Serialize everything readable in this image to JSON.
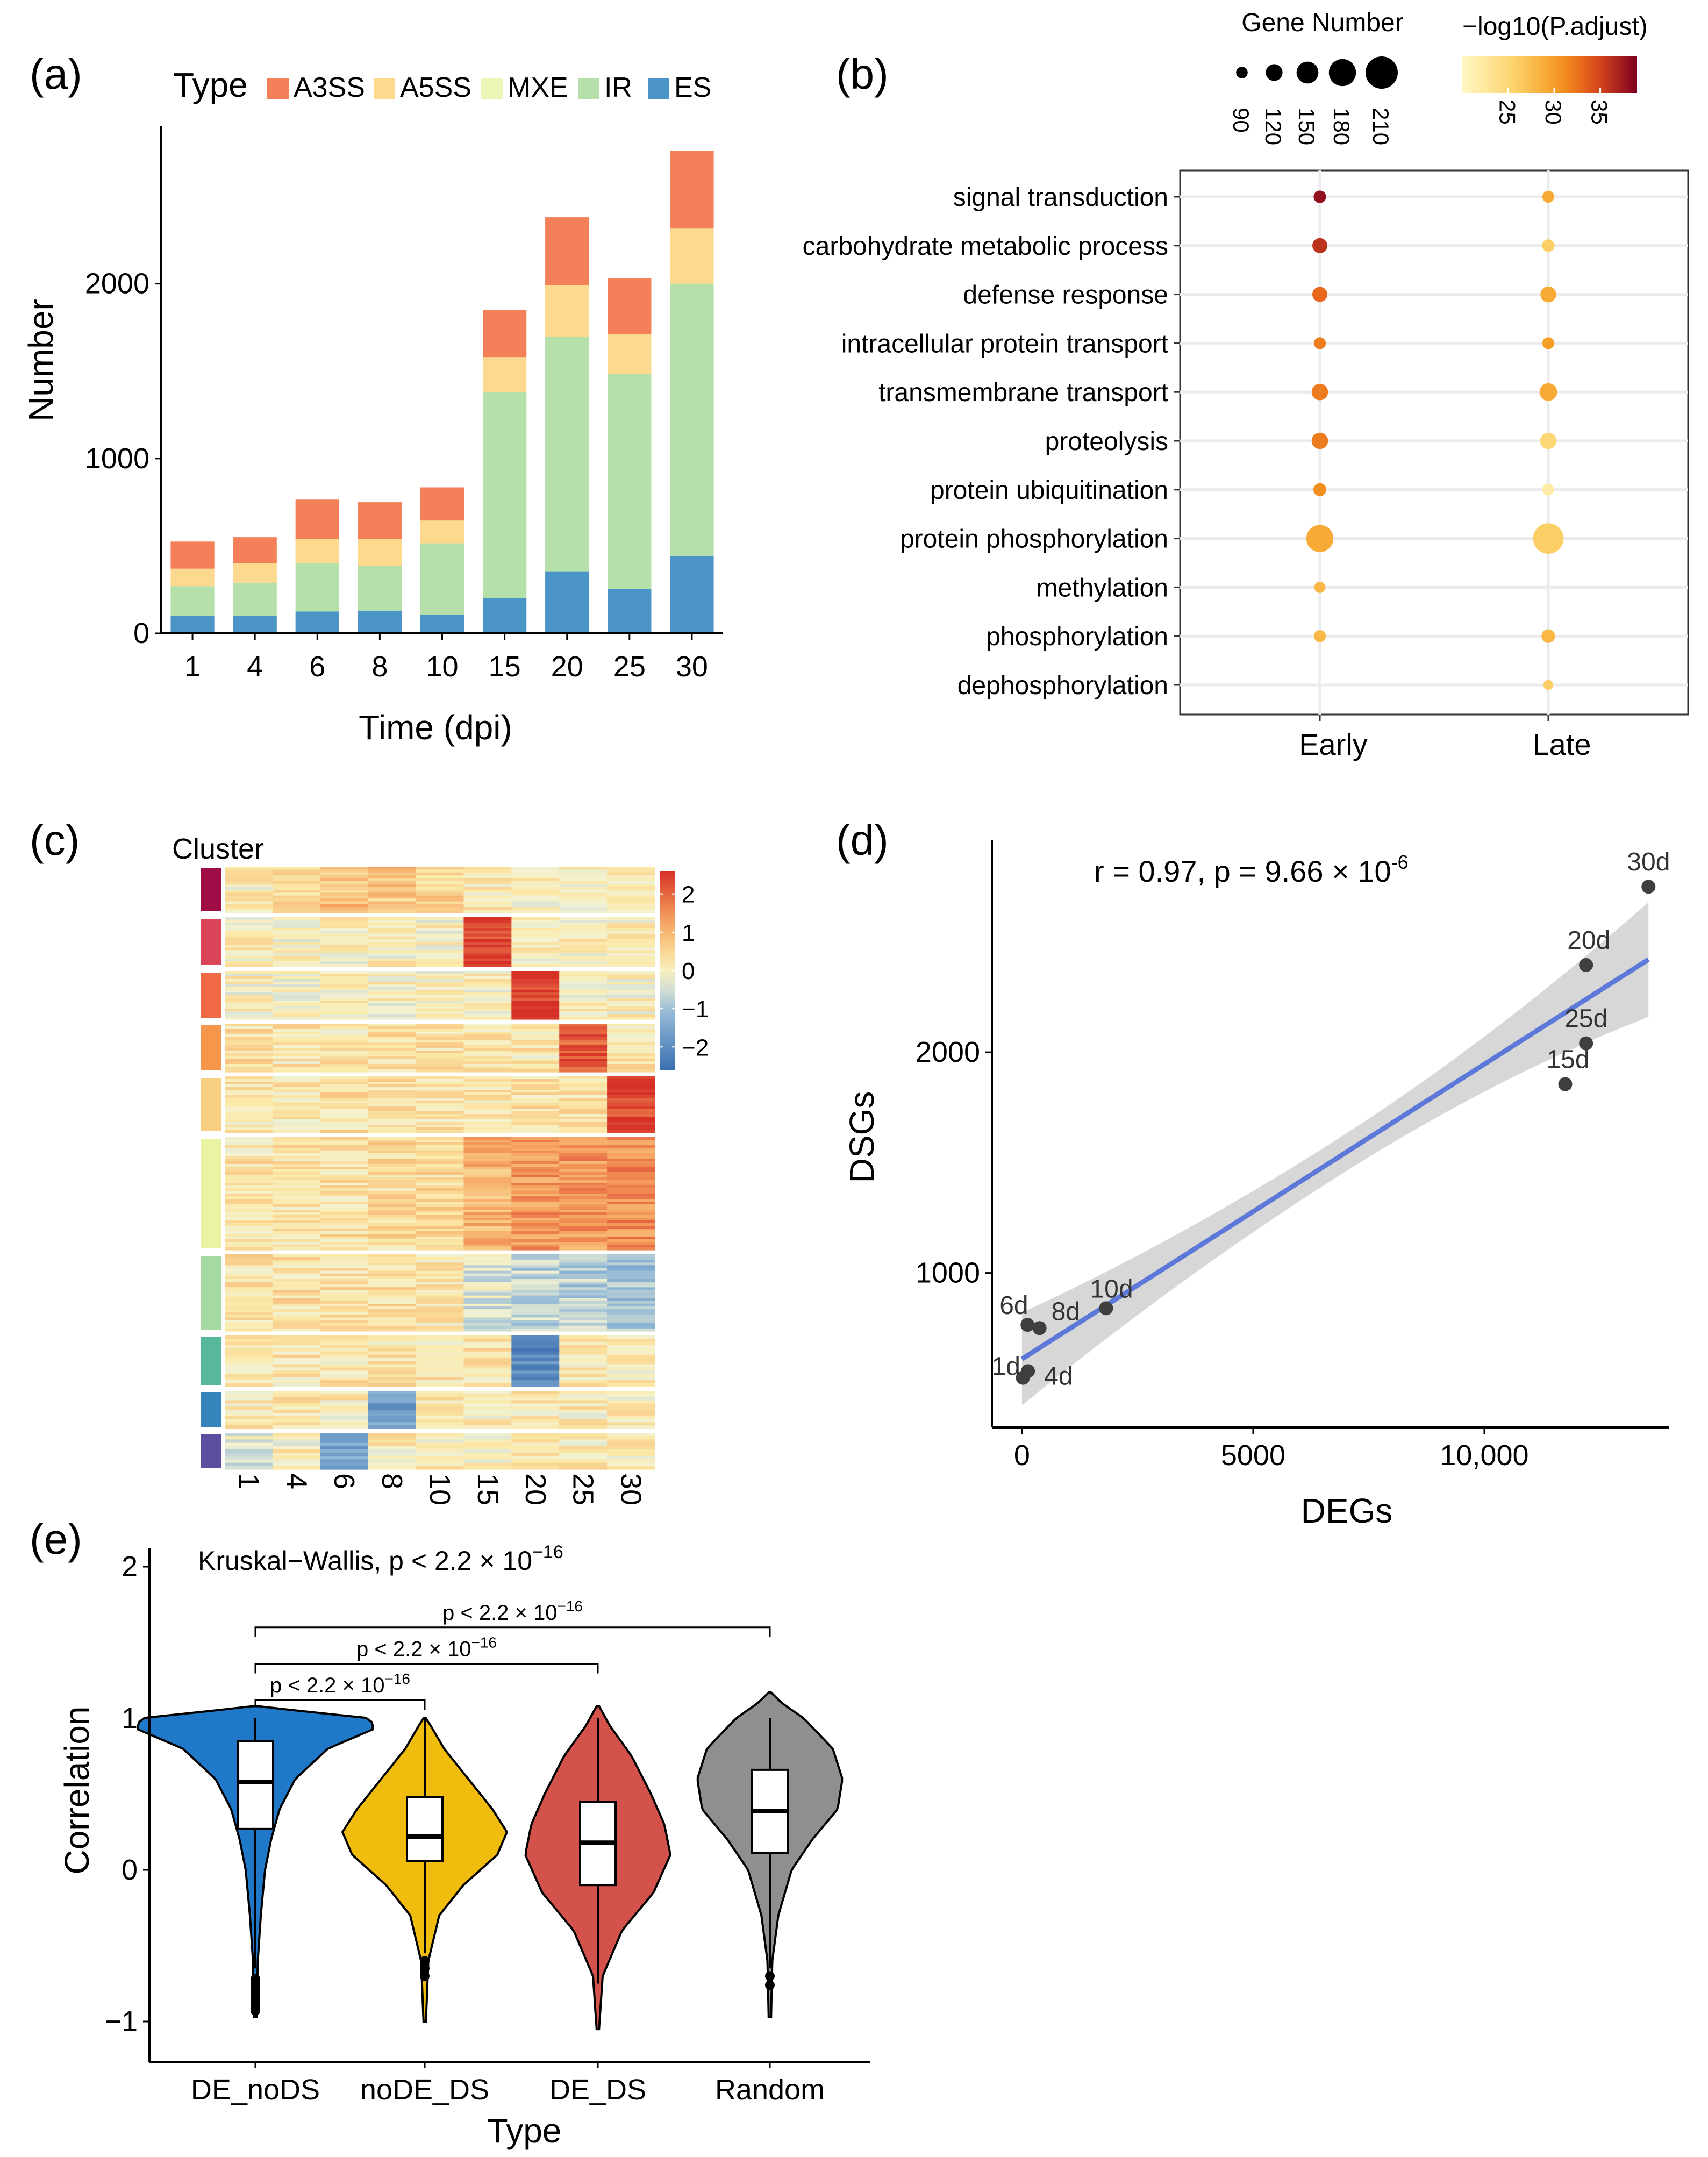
{
  "panel_labels": {
    "a": "(a)",
    "b": "(b)",
    "c": "(c)",
    "d": "(d)",
    "e": "(e)"
  },
  "colors": {
    "A3SS": "#f4805a",
    "A5SS": "#fdd88f",
    "MXE": "#ebf5b5",
    "IR": "#b5e0aa",
    "ES": "#4a94c6",
    "ggGrid": "#ebebeb",
    "regLine": "#5c78d8",
    "ribbon": "#d3d3d3",
    "violin": [
      "#1f78c8",
      "#f0bc0e",
      "#d4524c",
      "#8f8f8f"
    ]
  },
  "chart_data": [
    {
      "id": "a",
      "type": "bar",
      "stacked": true,
      "title": "",
      "legend_title": "Type",
      "legend_position": "top",
      "xlabel": "Time (dpi)",
      "ylabel": "Number",
      "categories": [
        "1",
        "4",
        "6",
        "8",
        "10",
        "15",
        "20",
        "25",
        "30"
      ],
      "yticks": [
        "0",
        "1000",
        "2000"
      ],
      "ytick_values": [
        0,
        1000,
        2000
      ],
      "ylim": [
        0,
        2900
      ],
      "series": [
        {
          "name": "ES",
          "values": [
            100,
            100,
            125,
            130,
            105,
            200,
            355,
            255,
            440
          ]
        },
        {
          "name": "IR",
          "values": [
            170,
            190,
            275,
            255,
            410,
            1180,
            1340,
            1230,
            1560
          ]
        },
        {
          "name": "MXE",
          "values": [
            0,
            0,
            0,
            0,
            0,
            0,
            0,
            0,
            0
          ]
        },
        {
          "name": "A5SS",
          "values": [
            100,
            110,
            140,
            155,
            130,
            200,
            295,
            225,
            315
          ]
        },
        {
          "name": "A3SS",
          "values": [
            155,
            150,
            225,
            210,
            190,
            270,
            390,
            320,
            445
          ]
        }
      ]
    },
    {
      "id": "b",
      "type": "scatter",
      "subtype": "dot-plot",
      "x_categories": [
        "Early",
        "Late"
      ],
      "y_categories": [
        "signal transduction",
        "carbohydrate metabolic process",
        "defense response",
        "intracellular protein transport",
        "transmembrane transport",
        "proteolysis",
        "protein ubiquitination",
        "protein phosphorylation",
        "methylation",
        "phosphorylation",
        "dephosphorylation"
      ],
      "size_legend_title": "Gene Number",
      "size_legend_values": [
        "90",
        "120",
        "150",
        "180",
        "210"
      ],
      "color_legend_title": "−log10(P.adjust)",
      "color_legend_ticks": [
        "25",
        "30",
        "35"
      ],
      "color_range": [
        20,
        39
      ],
      "points": [
        {
          "term": "signal transduction",
          "group": "Early",
          "count": 95,
          "padj": 38
        },
        {
          "term": "signal transduction",
          "group": "Late",
          "count": 92,
          "padj": 29
        },
        {
          "term": "carbohydrate metabolic process",
          "group": "Early",
          "count": 110,
          "padj": 36
        },
        {
          "term": "carbohydrate metabolic process",
          "group": "Late",
          "count": 95,
          "padj": 26
        },
        {
          "term": "defense response",
          "group": "Early",
          "count": 110,
          "padj": 33
        },
        {
          "term": "defense response",
          "group": "Late",
          "count": 115,
          "padj": 29
        },
        {
          "term": "intracellular protein transport",
          "group": "Early",
          "count": 92,
          "padj": 32
        },
        {
          "term": "intracellular protein transport",
          "group": "Late",
          "count": 92,
          "padj": 30
        },
        {
          "term": "transmembrane transport",
          "group": "Early",
          "count": 118,
          "padj": 32
        },
        {
          "term": "transmembrane transport",
          "group": "Late",
          "count": 125,
          "padj": 29
        },
        {
          "term": "proteolysis",
          "group": "Early",
          "count": 118,
          "padj": 32
        },
        {
          "term": "proteolysis",
          "group": "Late",
          "count": 118,
          "padj": 25
        },
        {
          "term": "protein ubiquitination",
          "group": "Early",
          "count": 98,
          "padj": 31
        },
        {
          "term": "protein ubiquitination",
          "group": "Late",
          "count": 92,
          "padj": 22
        },
        {
          "term": "protein phosphorylation",
          "group": "Early",
          "count": 180,
          "padj": 29
        },
        {
          "term": "protein phosphorylation",
          "group": "Late",
          "count": 200,
          "padj": 26
        },
        {
          "term": "methylation",
          "group": "Early",
          "count": 88,
          "padj": 28
        },
        {
          "term": "phosphorylation",
          "group": "Early",
          "count": 92,
          "padj": 28
        },
        {
          "term": "phosphorylation",
          "group": "Late",
          "count": 102,
          "padj": 28
        },
        {
          "term": "dephosphorylation",
          "group": "Late",
          "count": 80,
          "padj": 26
        }
      ]
    },
    {
      "id": "c",
      "type": "heatmap",
      "cluster_label": "Cluster",
      "columns": [
        "1",
        "4",
        "6",
        "8",
        "10",
        "15",
        "20",
        "25",
        "30"
      ],
      "colorbar_ticks": [
        "2",
        "1",
        "0",
        "−1",
        "−2"
      ],
      "colorbar_values": [
        2,
        1,
        0,
        -1,
        -2
      ],
      "value_range": [
        -2.6,
        2.6
      ],
      "clusters": [
        {
          "color": "#9e0d45",
          "rows": 16,
          "means": [
            0.1,
            0.4,
            0.8,
            0.7,
            0.5,
            0.2,
            0.1,
            0.0,
            0.0
          ]
        },
        {
          "color": "#d94459",
          "rows": 18,
          "means": [
            0.0,
            0.0,
            0.0,
            0.0,
            0.0,
            2.4,
            0.0,
            0.0,
            0.0
          ]
        },
        {
          "color": "#ef6945",
          "rows": 18,
          "means": [
            0.0,
            0.0,
            0.0,
            0.0,
            0.0,
            0.0,
            2.5,
            0.0,
            0.0
          ]
        },
        {
          "color": "#f5964b",
          "rows": 18,
          "means": [
            0.3,
            0.2,
            0.2,
            0.3,
            0.3,
            0.2,
            0.2,
            2.1,
            0.2
          ]
        },
        {
          "color": "#f9cf83",
          "rows": 21,
          "means": [
            0.2,
            0.2,
            0.3,
            0.3,
            0.3,
            0.2,
            0.3,
            0.3,
            2.4
          ]
        },
        {
          "color": "#e9f3a2",
          "rows": 42,
          "means": [
            0.2,
            0.2,
            0.3,
            0.4,
            0.4,
            1.0,
            1.4,
            1.4,
            1.5
          ]
        },
        {
          "color": "#a4d9a0",
          "rows": 28,
          "means": [
            0.3,
            0.3,
            0.3,
            0.3,
            0.2,
            -0.4,
            -0.7,
            -0.8,
            -1.0
          ]
        },
        {
          "color": "#57b89b",
          "rows": 16,
          "means": [
            0.2,
            0.2,
            0.2,
            0.2,
            0.2,
            0.2,
            -2.0,
            0.1,
            0.1
          ]
        },
        {
          "color": "#3584bb",
          "rows": 12,
          "means": [
            0.1,
            0.3,
            0.1,
            -1.6,
            0.1,
            0.1,
            0.1,
            0.1,
            0.1
          ]
        },
        {
          "color": "#5c4e9f",
          "rows": 11,
          "means": [
            -0.3,
            0.0,
            -1.5,
            0.1,
            0.1,
            0.1,
            0.1,
            0.1,
            0.1
          ]
        }
      ]
    },
    {
      "id": "d",
      "type": "scatter",
      "xlabel": "DEGs",
      "ylabel": "DSGs",
      "annotation": "r = 0.97, p = 9.66 × 10",
      "annotation_exp": "-6",
      "xticks": [
        "0",
        "5000",
        "10,000"
      ],
      "xtick_values": [
        0,
        5000,
        10000
      ],
      "yticks": [
        "1000",
        "2000"
      ],
      "ytick_values": [
        1000,
        2000
      ],
      "xlim": [
        -650,
        14000
      ],
      "ylim": [
        300,
        2960
      ],
      "points": [
        {
          "label": "1d",
          "x": 20,
          "y": 525
        },
        {
          "label": "4d",
          "x": 130,
          "y": 555
        },
        {
          "label": "6d",
          "x": 120,
          "y": 765
        },
        {
          "label": "8d",
          "x": 380,
          "y": 750
        },
        {
          "label": "10d",
          "x": 1820,
          "y": 840
        },
        {
          "label": "15d",
          "x": 11750,
          "y": 1855
        },
        {
          "label": "20d",
          "x": 12200,
          "y": 2395
        },
        {
          "label": "25d",
          "x": 12200,
          "y": 2040
        },
        {
          "label": "30d",
          "x": 13550,
          "y": 2750
        }
      ],
      "fit": {
        "x0": 0,
        "y0": 610,
        "x1": 13550,
        "y1": 2420,
        "ci_start": 210,
        "ci_mid": 85,
        "ci_end": 260
      }
    },
    {
      "id": "e",
      "type": "violin",
      "xlabel": "Type",
      "ylabel": "Correlation",
      "title": "Kruskal−Wallis, p < 2.2 × 10",
      "title_exp": "−16",
      "categories": [
        "DE_noDS",
        "noDE_DS",
        "DE_DS",
        "Random"
      ],
      "yticks": [
        "−1",
        "0",
        "1",
        "2"
      ],
      "ytick_values": [
        -1,
        0,
        1,
        2
      ],
      "ylim": [
        -1.2,
        2.1
      ],
      "boxes": [
        {
          "q1": 0.27,
          "median": 0.58,
          "q3": 0.85,
          "wmin": -0.65,
          "wmax": 1.0
        },
        {
          "q1": 0.06,
          "median": 0.22,
          "q3": 0.48,
          "wmin": -0.55,
          "wmax": 1.0
        },
        {
          "q1": -0.1,
          "median": 0.18,
          "q3": 0.45,
          "wmin": -0.75,
          "wmax": 1.0
        },
        {
          "q1": 0.11,
          "median": 0.39,
          "q3": 0.66,
          "wmin": -0.65,
          "wmax": 1.0
        }
      ],
      "violins": [
        {
          "ymin": -0.97,
          "ymax": 1.08,
          "prof": [
            [
              -0.97,
              0.01
            ],
            [
              -0.6,
              0.02
            ],
            [
              -0.3,
              0.045
            ],
            [
              0.0,
              0.08
            ],
            [
              0.2,
              0.13
            ],
            [
              0.4,
              0.2
            ],
            [
              0.6,
              0.33
            ],
            [
              0.8,
              0.6
            ],
            [
              0.93,
              0.98
            ],
            [
              1.0,
              0.95
            ],
            [
              1.05,
              0.35
            ],
            [
              1.08,
              0.02
            ]
          ]
        },
        {
          "ymin": -1.0,
          "ymax": 1.0,
          "prof": [
            [
              -1.0,
              0.01
            ],
            [
              -0.6,
              0.03
            ],
            [
              -0.3,
              0.12
            ],
            [
              -0.1,
              0.32
            ],
            [
              0.1,
              0.6
            ],
            [
              0.25,
              0.68
            ],
            [
              0.4,
              0.56
            ],
            [
              0.6,
              0.36
            ],
            [
              0.8,
              0.16
            ],
            [
              0.95,
              0.05
            ],
            [
              1.0,
              0.01
            ]
          ]
        },
        {
          "ymin": -1.05,
          "ymax": 1.08,
          "prof": [
            [
              -1.05,
              0.01
            ],
            [
              -0.7,
              0.04
            ],
            [
              -0.4,
              0.2
            ],
            [
              -0.15,
              0.46
            ],
            [
              0.1,
              0.6
            ],
            [
              0.3,
              0.55
            ],
            [
              0.5,
              0.44
            ],
            [
              0.75,
              0.28
            ],
            [
              0.95,
              0.1
            ],
            [
              1.08,
              0.01
            ]
          ]
        },
        {
          "ymin": -0.97,
          "ymax": 1.17,
          "prof": [
            [
              -0.97,
              0.01
            ],
            [
              -0.6,
              0.02
            ],
            [
              -0.3,
              0.07
            ],
            [
              0.0,
              0.18
            ],
            [
              0.2,
              0.35
            ],
            [
              0.4,
              0.56
            ],
            [
              0.6,
              0.6
            ],
            [
              0.8,
              0.52
            ],
            [
              1.0,
              0.28
            ],
            [
              1.1,
              0.1
            ],
            [
              1.17,
              0.01
            ]
          ]
        }
      ],
      "brackets": [
        {
          "from": 0,
          "to": 1,
          "y": 1.12,
          "label": "p < 2.2 × 10",
          "exp": "−16"
        },
        {
          "from": 0,
          "to": 2,
          "y": 1.36,
          "label": "p < 2.2 × 10",
          "exp": "−16"
        },
        {
          "from": 0,
          "to": 3,
          "y": 1.6,
          "label": "p < 2.2 × 10",
          "exp": "−16"
        }
      ]
    }
  ]
}
